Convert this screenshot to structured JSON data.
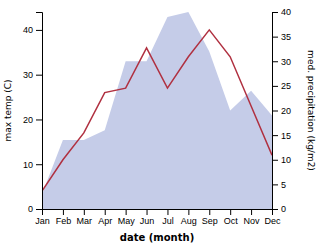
{
  "chart_data": {
    "type": "line",
    "categories": [
      "Jan",
      "Feb",
      "Mar",
      "Apr",
      "May",
      "Jun",
      "Jul",
      "Aug",
      "Sep",
      "Oct",
      "Nov",
      "Dec"
    ],
    "xlabel": "date (month)",
    "ylabel": "max temp (C)",
    "y2label": "med. precipitation (kg/m2)",
    "ylim": [
      0,
      44
    ],
    "yticks": [
      0,
      10,
      20,
      30,
      40
    ],
    "y2lim": [
      0,
      40
    ],
    "y2ticks": [
      0,
      5,
      10,
      15,
      20,
      25,
      30,
      35,
      40
    ],
    "series": [
      {
        "type": "area",
        "axis": "y2",
        "color": "#c5cce8",
        "values": [
          3,
          14,
          14,
          16,
          30,
          30,
          39,
          40,
          32,
          20,
          24,
          19
        ]
      },
      {
        "type": "line",
        "color": "#b03040",
        "values": [
          4,
          11,
          17,
          26,
          27,
          36,
          27,
          34,
          40,
          34,
          23,
          12
        ]
      }
    ]
  }
}
